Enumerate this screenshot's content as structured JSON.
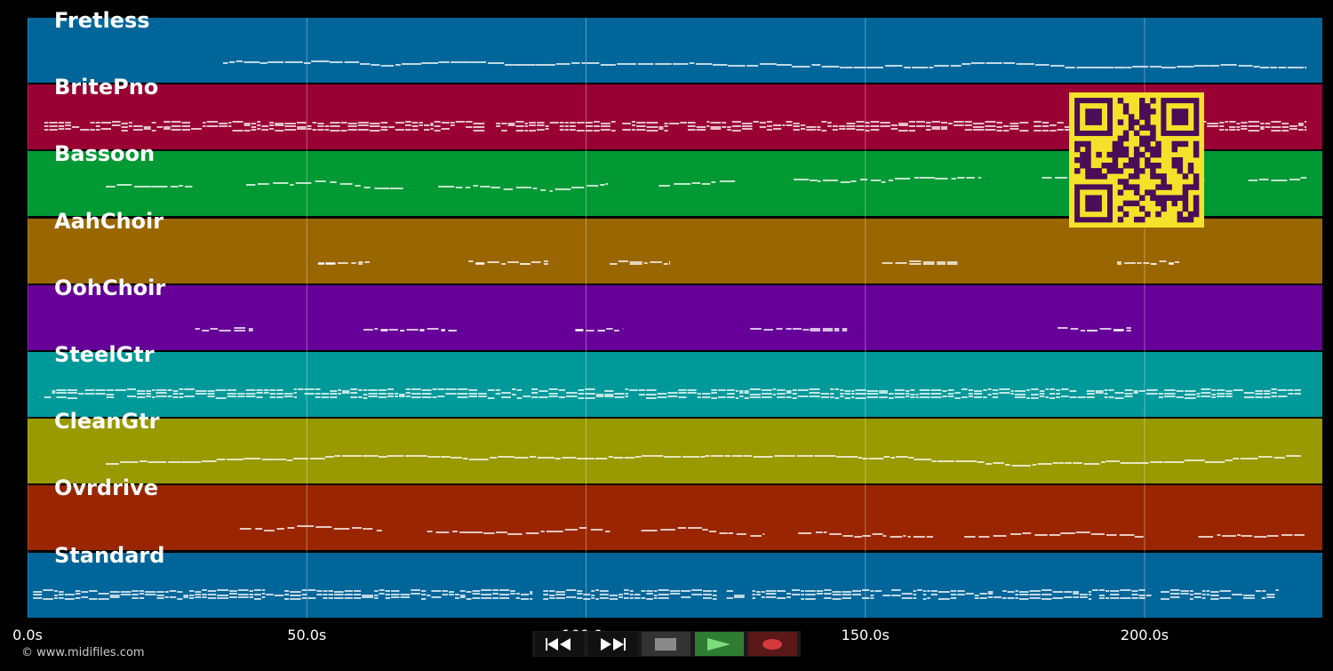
{
  "app": {
    "copyright": "© www.midifiles.com",
    "x_axis": {
      "unit": "s",
      "ticks": [
        {
          "value": 0,
          "label": "0.0s"
        },
        {
          "value": 50,
          "label": "50.0s"
        },
        {
          "value": 100,
          "label": "100.0s"
        },
        {
          "value": 150,
          "label": "150.0s"
        },
        {
          "value": 200,
          "label": "200.0s"
        }
      ],
      "range": [
        0,
        232
      ]
    }
  },
  "tracks": [
    {
      "name": "Fretless",
      "color": "#006699",
      "density": "sparse-line",
      "start": 35,
      "end": 229
    },
    {
      "name": "BritePno",
      "color": "#990033",
      "density": "dense",
      "start": 3,
      "end": 229
    },
    {
      "name": "Bassoon",
      "color": "#009933",
      "density": "phrases",
      "start": 14,
      "end": 229
    },
    {
      "name": "AahChoir",
      "color": "#996600",
      "density": "chords",
      "start": 52,
      "end": 229
    },
    {
      "name": "OohChoir",
      "color": "#660099",
      "density": "chords",
      "start": 30,
      "end": 229
    },
    {
      "name": "SteelGtr",
      "color": "#009999",
      "density": "dense",
      "start": 3,
      "end": 228
    },
    {
      "name": "CleanGtr",
      "color": "#999900",
      "density": "sparse-line",
      "start": 14,
      "end": 228
    },
    {
      "name": "Ovrdrive",
      "color": "#992600",
      "density": "phrases",
      "start": 38,
      "end": 229
    },
    {
      "name": "Standard",
      "color": "#006699",
      "density": "dense",
      "start": 1,
      "end": 224
    }
  ],
  "transport": {
    "buttons": [
      {
        "name": "rewind-icon",
        "color": "#ffffff"
      },
      {
        "name": "fast-forward-icon",
        "color": "#ffffff"
      },
      {
        "name": "stop-icon",
        "color": "#888888"
      },
      {
        "name": "play-icon",
        "color": "#66cc66"
      },
      {
        "name": "record-icon",
        "color": "#cc3333"
      }
    ],
    "accent_play": "#2e7d32",
    "accent_record": "#7a1f1f"
  },
  "qr": {
    "fg": "#4a0d57",
    "bg": "#f5e12a"
  }
}
